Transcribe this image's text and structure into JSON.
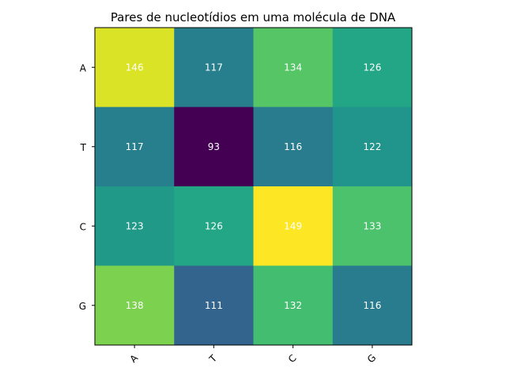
{
  "chart_data": {
    "type": "heatmap",
    "title": "Pares de nucleotídios em uma molécula de DNA",
    "xlabel": "",
    "ylabel": "",
    "x_categories": [
      "A",
      "T",
      "C",
      "G"
    ],
    "y_categories": [
      "A",
      "T",
      "C",
      "G"
    ],
    "values": [
      [
        146,
        117,
        134,
        126
      ],
      [
        117,
        93,
        116,
        122
      ],
      [
        123,
        126,
        149,
        133
      ],
      [
        138,
        111,
        132,
        116
      ]
    ],
    "colormap": "viridis",
    "value_range": [
      93,
      149
    ],
    "annotation_color": "#ffffff",
    "x_tick_rotation": "45-degree",
    "grid": false,
    "legend": "none"
  }
}
